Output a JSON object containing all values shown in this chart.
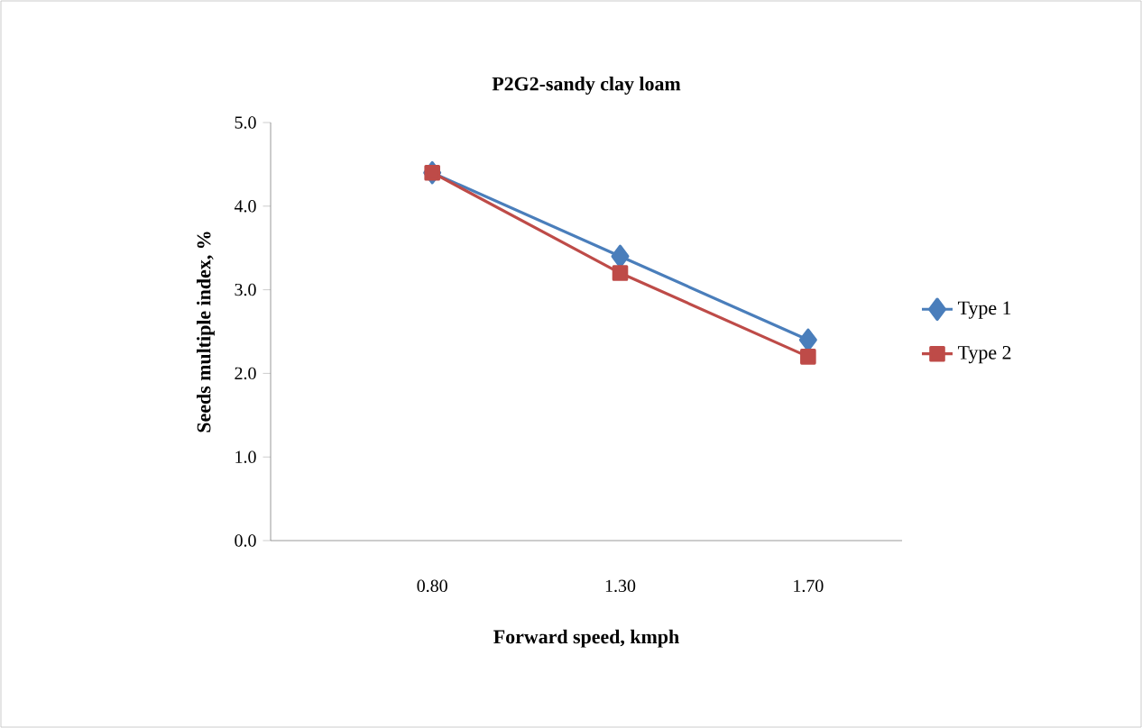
{
  "chart_data": {
    "type": "line",
    "title": "P2G2-sandy clay loam",
    "xlabel": "Forward speed, kmph",
    "ylabel": "Seeds multiple index, %",
    "categories": [
      "0.80",
      "1.30",
      "1.70"
    ],
    "series": [
      {
        "name": "Type 1",
        "color": "#4a7ebb",
        "marker": "diamond",
        "values": [
          4.4,
          3.4,
          2.4
        ]
      },
      {
        "name": "Type 2",
        "color": "#be4b48",
        "marker": "square",
        "values": [
          4.4,
          3.2,
          2.2
        ]
      }
    ],
    "ylim": [
      0,
      5
    ],
    "yticks": [
      {
        "value": 0,
        "label": "0.0"
      },
      {
        "value": 1,
        "label": "1.0"
      },
      {
        "value": 2,
        "label": "2.0"
      },
      {
        "value": 3,
        "label": "3.0"
      },
      {
        "value": 4,
        "label": "4.0"
      },
      {
        "value": 5,
        "label": "5.0"
      }
    ],
    "grid": false,
    "legend": "right"
  }
}
